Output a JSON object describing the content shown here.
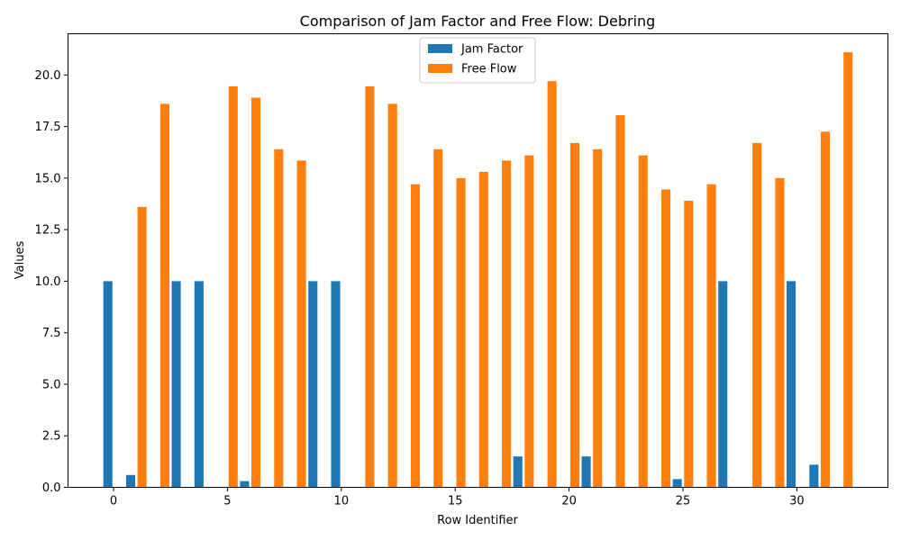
{
  "chart_data": {
    "type": "bar",
    "title": "Comparison of Jam Factor and Free Flow: Debring",
    "xlabel": "Row Identifier",
    "ylabel": "Values",
    "xlim": [
      -2,
      34
    ],
    "ylim": [
      0,
      22
    ],
    "x_ticks": [
      0,
      5,
      10,
      15,
      20,
      25,
      30
    ],
    "y_ticks": [
      "0.0",
      "2.5",
      "5.0",
      "7.5",
      "10.0",
      "12.5",
      "15.0",
      "17.5",
      "20.0"
    ],
    "legend_position": "top-center",
    "grid": false,
    "series": [
      {
        "name": "Jam Factor",
        "color": "#1f77b4",
        "points": [
          {
            "x": 0,
            "y": 10.0
          },
          {
            "x": 1,
            "y": 0.6
          },
          {
            "x": 3,
            "y": 10.0
          },
          {
            "x": 4,
            "y": 10.0
          },
          {
            "x": 6,
            "y": 0.3
          },
          {
            "x": 9,
            "y": 10.0
          },
          {
            "x": 10,
            "y": 10.0
          },
          {
            "x": 18,
            "y": 1.5
          },
          {
            "x": 21,
            "y": 1.5
          },
          {
            "x": 25,
            "y": 0.4
          },
          {
            "x": 27,
            "y": 10.0
          },
          {
            "x": 30,
            "y": 10.0
          },
          {
            "x": 31,
            "y": 1.1
          }
        ]
      },
      {
        "name": "Free Flow",
        "color": "#ff7f0e",
        "points": [
          {
            "x": 1,
            "y": 13.6
          },
          {
            "x": 2,
            "y": 18.6
          },
          {
            "x": 5,
            "y": 19.45
          },
          {
            "x": 6,
            "y": 18.9
          },
          {
            "x": 7,
            "y": 16.4
          },
          {
            "x": 8,
            "y": 15.85
          },
          {
            "x": 11,
            "y": 19.45
          },
          {
            "x": 12,
            "y": 18.6
          },
          {
            "x": 13,
            "y": 14.7
          },
          {
            "x": 14,
            "y": 16.4
          },
          {
            "x": 15,
            "y": 15.0
          },
          {
            "x": 16,
            "y": 15.3
          },
          {
            "x": 17,
            "y": 15.85
          },
          {
            "x": 18,
            "y": 16.1
          },
          {
            "x": 19,
            "y": 19.7
          },
          {
            "x": 20,
            "y": 16.7
          },
          {
            "x": 21,
            "y": 16.4
          },
          {
            "x": 22,
            "y": 18.05
          },
          {
            "x": 23,
            "y": 16.1
          },
          {
            "x": 24,
            "y": 14.45
          },
          {
            "x": 25,
            "y": 13.9
          },
          {
            "x": 26,
            "y": 14.7
          },
          {
            "x": 28,
            "y": 16.7
          },
          {
            "x": 29,
            "y": 15.0
          },
          {
            "x": 31,
            "y": 17.25
          },
          {
            "x": 32,
            "y": 21.1
          }
        ]
      }
    ]
  }
}
